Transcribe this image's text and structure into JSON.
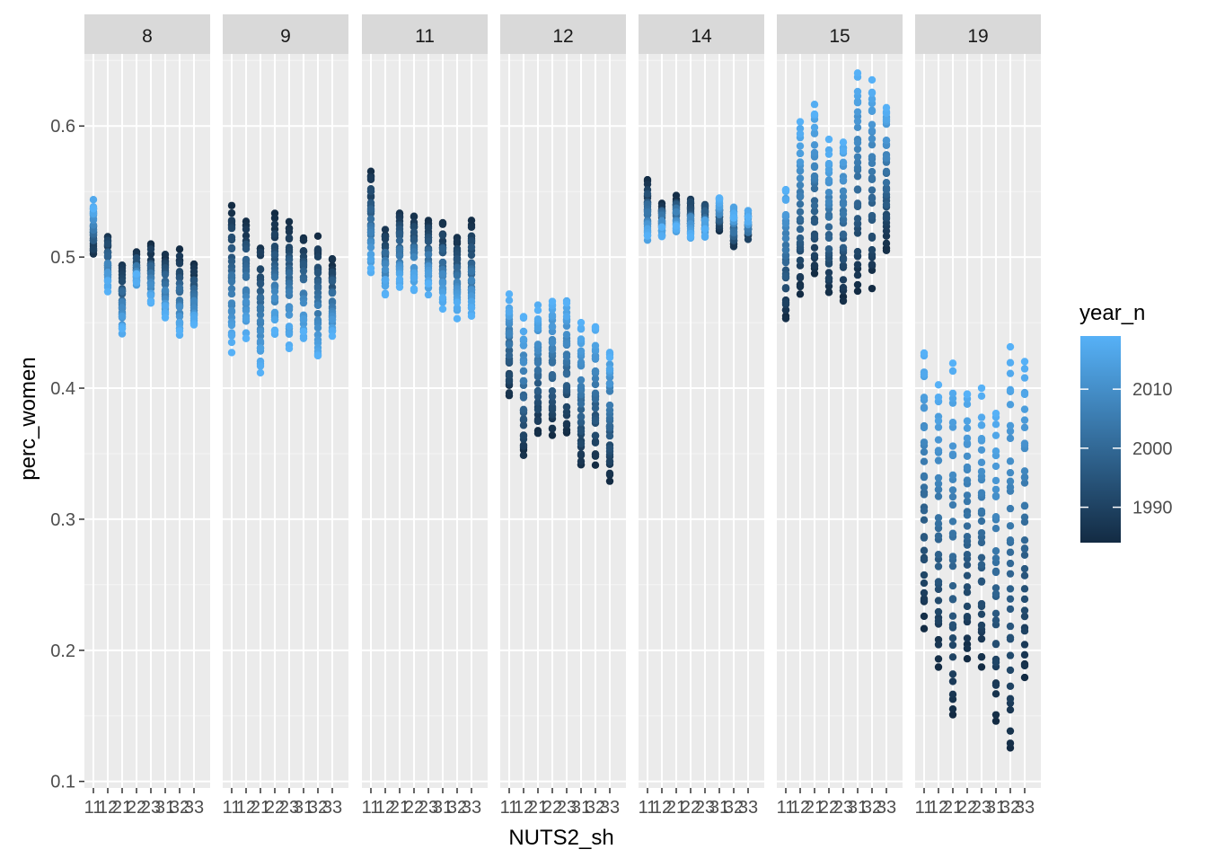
{
  "chart_data": {
    "type": "scatter",
    "facet_labels": [
      "8",
      "9",
      "11",
      "12",
      "14",
      "15",
      "19"
    ],
    "x_tick_labels": [
      "11",
      "12",
      "21",
      "22",
      "23",
      "31",
      "32",
      "33"
    ],
    "xlabel": "NUTS2_sh",
    "ylabel": "perc_women",
    "y_ticks": [
      0.1,
      0.2,
      0.3,
      0.4,
      0.5,
      0.6
    ],
    "y_tick_labels": [
      "0.1",
      "0.2",
      "0.3",
      "0.4",
      "0.5",
      "0.6"
    ],
    "ylim": [
      0.095,
      0.655
    ],
    "legend": {
      "title": "year_n",
      "position": "right",
      "ticks": [
        1990,
        2000,
        2010
      ],
      "tick_labels": [
        "1990",
        "2000",
        "2010"
      ],
      "range": [
        1984,
        2019
      ],
      "color_low": "#132B43",
      "color_high": "#56B1F7"
    },
    "panel_background": "#EBEBEB",
    "strip_background": "#D9D9D9",
    "grid": true,
    "year_range": [
      1984,
      2019
    ],
    "facets": [
      {
        "label": "8",
        "series": [
          {
            "x": "11",
            "start": 0.505,
            "end": 0.54,
            "mid": 0.5,
            "lo": 0.493,
            "hi": 0.548
          },
          {
            "x": "12",
            "start": 0.515,
            "end": 0.478,
            "mid": 0.49,
            "lo": 0.468,
            "hi": 0.52
          },
          {
            "x": "21",
            "start": 0.492,
            "end": 0.443,
            "mid": 0.465,
            "lo": 0.436,
            "hi": 0.494
          },
          {
            "x": "22",
            "start": 0.5,
            "end": 0.482,
            "mid": 0.495,
            "lo": 0.478,
            "hi": 0.517
          },
          {
            "x": "23",
            "start": 0.508,
            "end": 0.462,
            "mid": 0.48,
            "lo": 0.458,
            "hi": 0.51
          },
          {
            "x": "31",
            "start": 0.5,
            "end": 0.455,
            "mid": 0.475,
            "lo": 0.443,
            "hi": 0.502
          },
          {
            "x": "32",
            "start": 0.503,
            "end": 0.442,
            "mid": 0.468,
            "lo": 0.435,
            "hi": 0.506
          },
          {
            "x": "33",
            "start": 0.49,
            "end": 0.448,
            "mid": 0.47,
            "lo": 0.442,
            "hi": 0.495
          }
        ]
      },
      {
        "label": "9",
        "series": [
          {
            "x": "11",
            "start": 0.538,
            "end": 0.432,
            "mid": 0.47,
            "lo": 0.426,
            "hi": 0.543
          },
          {
            "x": "12",
            "start": 0.53,
            "end": 0.44,
            "mid": 0.47,
            "lo": 0.433,
            "hi": 0.533
          },
          {
            "x": "21",
            "start": 0.512,
            "end": 0.415,
            "mid": 0.455,
            "lo": 0.408,
            "hi": 0.516
          },
          {
            "x": "22",
            "start": 0.53,
            "end": 0.44,
            "mid": 0.468,
            "lo": 0.433,
            "hi": 0.534
          },
          {
            "x": "23",
            "start": 0.526,
            "end": 0.436,
            "mid": 0.462,
            "lo": 0.428,
            "hi": 0.53
          },
          {
            "x": "31",
            "start": 0.516,
            "end": 0.438,
            "mid": 0.465,
            "lo": 0.432,
            "hi": 0.52
          },
          {
            "x": "32",
            "start": 0.512,
            "end": 0.425,
            "mid": 0.458,
            "lo": 0.418,
            "hi": 0.516
          },
          {
            "x": "33",
            "start": 0.5,
            "end": 0.437,
            "mid": 0.46,
            "lo": 0.43,
            "hi": 0.503
          }
        ]
      },
      {
        "label": "11",
        "series": [
          {
            "x": "11",
            "start": 0.563,
            "end": 0.49,
            "mid": 0.52,
            "lo": 0.483,
            "hi": 0.566
          },
          {
            "x": "12",
            "start": 0.52,
            "end": 0.475,
            "mid": 0.495,
            "lo": 0.468,
            "hi": 0.527
          },
          {
            "x": "21",
            "start": 0.533,
            "end": 0.478,
            "mid": 0.5,
            "lo": 0.47,
            "hi": 0.536
          },
          {
            "x": "22",
            "start": 0.53,
            "end": 0.478,
            "mid": 0.5,
            "lo": 0.472,
            "hi": 0.533
          },
          {
            "x": "23",
            "start": 0.528,
            "end": 0.475,
            "mid": 0.498,
            "lo": 0.468,
            "hi": 0.531
          },
          {
            "x": "31",
            "start": 0.524,
            "end": 0.465,
            "mid": 0.492,
            "lo": 0.458,
            "hi": 0.527
          },
          {
            "x": "32",
            "start": 0.512,
            "end": 0.458,
            "mid": 0.482,
            "lo": 0.453,
            "hi": 0.516
          },
          {
            "x": "33",
            "start": 0.525,
            "end": 0.454,
            "mid": 0.48,
            "lo": 0.447,
            "hi": 0.528
          }
        ]
      },
      {
        "label": "12",
        "series": [
          {
            "x": "11",
            "start": 0.398,
            "end": 0.468,
            "mid": 0.44,
            "lo": 0.393,
            "hi": 0.474
          },
          {
            "x": "12",
            "start": 0.348,
            "end": 0.452,
            "mid": 0.405,
            "lo": 0.344,
            "hi": 0.456
          },
          {
            "x": "21",
            "start": 0.366,
            "end": 0.462,
            "mid": 0.418,
            "lo": 0.362,
            "hi": 0.466
          },
          {
            "x": "22",
            "start": 0.368,
            "end": 0.466,
            "mid": 0.42,
            "lo": 0.364,
            "hi": 0.469
          },
          {
            "x": "23",
            "start": 0.37,
            "end": 0.466,
            "mid": 0.42,
            "lo": 0.366,
            "hi": 0.47
          },
          {
            "x": "31",
            "start": 0.338,
            "end": 0.446,
            "mid": 0.398,
            "lo": 0.334,
            "hi": 0.45
          },
          {
            "x": "32",
            "start": 0.345,
            "end": 0.45,
            "mid": 0.4,
            "lo": 0.34,
            "hi": 0.455
          },
          {
            "x": "33",
            "start": 0.332,
            "end": 0.428,
            "mid": 0.385,
            "lo": 0.329,
            "hi": 0.432
          }
        ]
      },
      {
        "label": "14",
        "series": [
          {
            "x": "11",
            "start": 0.555,
            "end": 0.514,
            "mid": 0.53,
            "lo": 0.508,
            "hi": 0.559
          },
          {
            "x": "12",
            "start": 0.538,
            "end": 0.518,
            "mid": 0.528,
            "lo": 0.514,
            "hi": 0.541
          },
          {
            "x": "21",
            "start": 0.545,
            "end": 0.52,
            "mid": 0.532,
            "lo": 0.515,
            "hi": 0.548
          },
          {
            "x": "22",
            "start": 0.542,
            "end": 0.517,
            "mid": 0.53,
            "lo": 0.512,
            "hi": 0.545
          },
          {
            "x": "23",
            "start": 0.538,
            "end": 0.52,
            "mid": 0.528,
            "lo": 0.515,
            "hi": 0.541
          },
          {
            "x": "31",
            "start": 0.525,
            "end": 0.545,
            "mid": 0.535,
            "lo": 0.52,
            "hi": 0.551
          },
          {
            "x": "32",
            "start": 0.512,
            "end": 0.535,
            "mid": 0.522,
            "lo": 0.508,
            "hi": 0.54
          },
          {
            "x": "33",
            "start": 0.515,
            "end": 0.533,
            "mid": 0.525,
            "lo": 0.508,
            "hi": 0.539
          }
        ]
      },
      {
        "label": "15",
        "series": [
          {
            "x": "11",
            "start": 0.452,
            "end": 0.555,
            "mid": 0.5,
            "lo": 0.449,
            "hi": 0.561
          },
          {
            "x": "12",
            "start": 0.472,
            "end": 0.6,
            "mid": 0.54,
            "lo": 0.469,
            "hi": 0.605
          },
          {
            "x": "21",
            "start": 0.483,
            "end": 0.615,
            "mid": 0.55,
            "lo": 0.478,
            "hi": 0.621
          },
          {
            "x": "22",
            "start": 0.468,
            "end": 0.585,
            "mid": 0.525,
            "lo": 0.464,
            "hi": 0.59
          },
          {
            "x": "23",
            "start": 0.468,
            "end": 0.588,
            "mid": 0.528,
            "lo": 0.464,
            "hi": 0.593
          },
          {
            "x": "31",
            "start": 0.478,
            "end": 0.638,
            "mid": 0.56,
            "lo": 0.474,
            "hi": 0.643
          },
          {
            "x": "32",
            "start": 0.48,
            "end": 0.634,
            "mid": 0.558,
            "lo": 0.476,
            "hi": 0.639
          },
          {
            "x": "33",
            "start": 0.503,
            "end": 0.618,
            "mid": 0.56,
            "lo": 0.499,
            "hi": 0.622
          }
        ]
      },
      {
        "label": "19",
        "series": [
          {
            "x": "11",
            "start": 0.22,
            "end": 0.428,
            "mid": 0.33,
            "lo": 0.216,
            "hi": 0.432
          },
          {
            "x": "12",
            "start": 0.19,
            "end": 0.405,
            "mid": 0.3,
            "lo": 0.185,
            "hi": 0.41
          },
          {
            "x": "21",
            "start": 0.145,
            "end": 0.415,
            "mid": 0.29,
            "lo": 0.142,
            "hi": 0.419
          },
          {
            "x": "22",
            "start": 0.195,
            "end": 0.4,
            "mid": 0.3,
            "lo": 0.191,
            "hi": 0.404
          },
          {
            "x": "23",
            "start": 0.188,
            "end": 0.395,
            "mid": 0.295,
            "lo": 0.184,
            "hi": 0.4
          },
          {
            "x": "31",
            "start": 0.15,
            "end": 0.38,
            "mid": 0.265,
            "lo": 0.146,
            "hi": 0.383
          },
          {
            "x": "32",
            "start": 0.125,
            "end": 0.428,
            "mid": 0.29,
            "lo": 0.122,
            "hi": 0.432
          },
          {
            "x": "33",
            "start": 0.178,
            "end": 0.418,
            "mid": 0.3,
            "lo": 0.174,
            "hi": 0.423
          }
        ]
      }
    ]
  }
}
